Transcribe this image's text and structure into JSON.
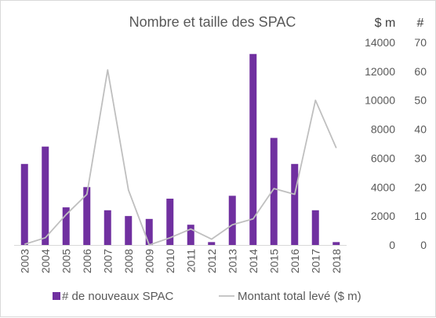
{
  "chart_data": {
    "type": "bar",
    "title": "Nombre et taille des SPAC",
    "categories": [
      "2003",
      "2004",
      "2005",
      "2006",
      "2007",
      "2008",
      "2009",
      "2010",
      "2011",
      "2012",
      "2013",
      "2014",
      "2015",
      "2016",
      "2017",
      "2018"
    ],
    "series": [
      {
        "name": "# de nouveaux SPAC",
        "type": "bar",
        "axis": "right",
        "color": "#7030a0",
        "values": [
          28,
          34,
          13,
          20,
          12,
          10,
          9,
          16,
          7,
          1,
          17,
          66,
          37,
          28,
          12,
          1
        ]
      },
      {
        "name": "Montant total levé ($ m)",
        "type": "line",
        "axis": "left",
        "color": "#bfbfbf",
        "values": [
          50,
          500,
          2100,
          3500,
          12100,
          3800,
          0,
          500,
          1100,
          400,
          1400,
          1800,
          3900,
          3500,
          10000,
          6700
        ]
      }
    ],
    "y_left": {
      "label": "$ m",
      "ticks": [
        "14000",
        "12000",
        "10000",
        "8000",
        "6000",
        "4000",
        "2000",
        "0"
      ],
      "ylim": [
        0,
        14000
      ]
    },
    "y_right": {
      "label": "#",
      "ticks": [
        "70",
        "60",
        "50",
        "40",
        "30",
        "20",
        "10",
        "0"
      ],
      "ylim": [
        0,
        70
      ]
    },
    "grid": false,
    "legend_position": "bottom"
  }
}
